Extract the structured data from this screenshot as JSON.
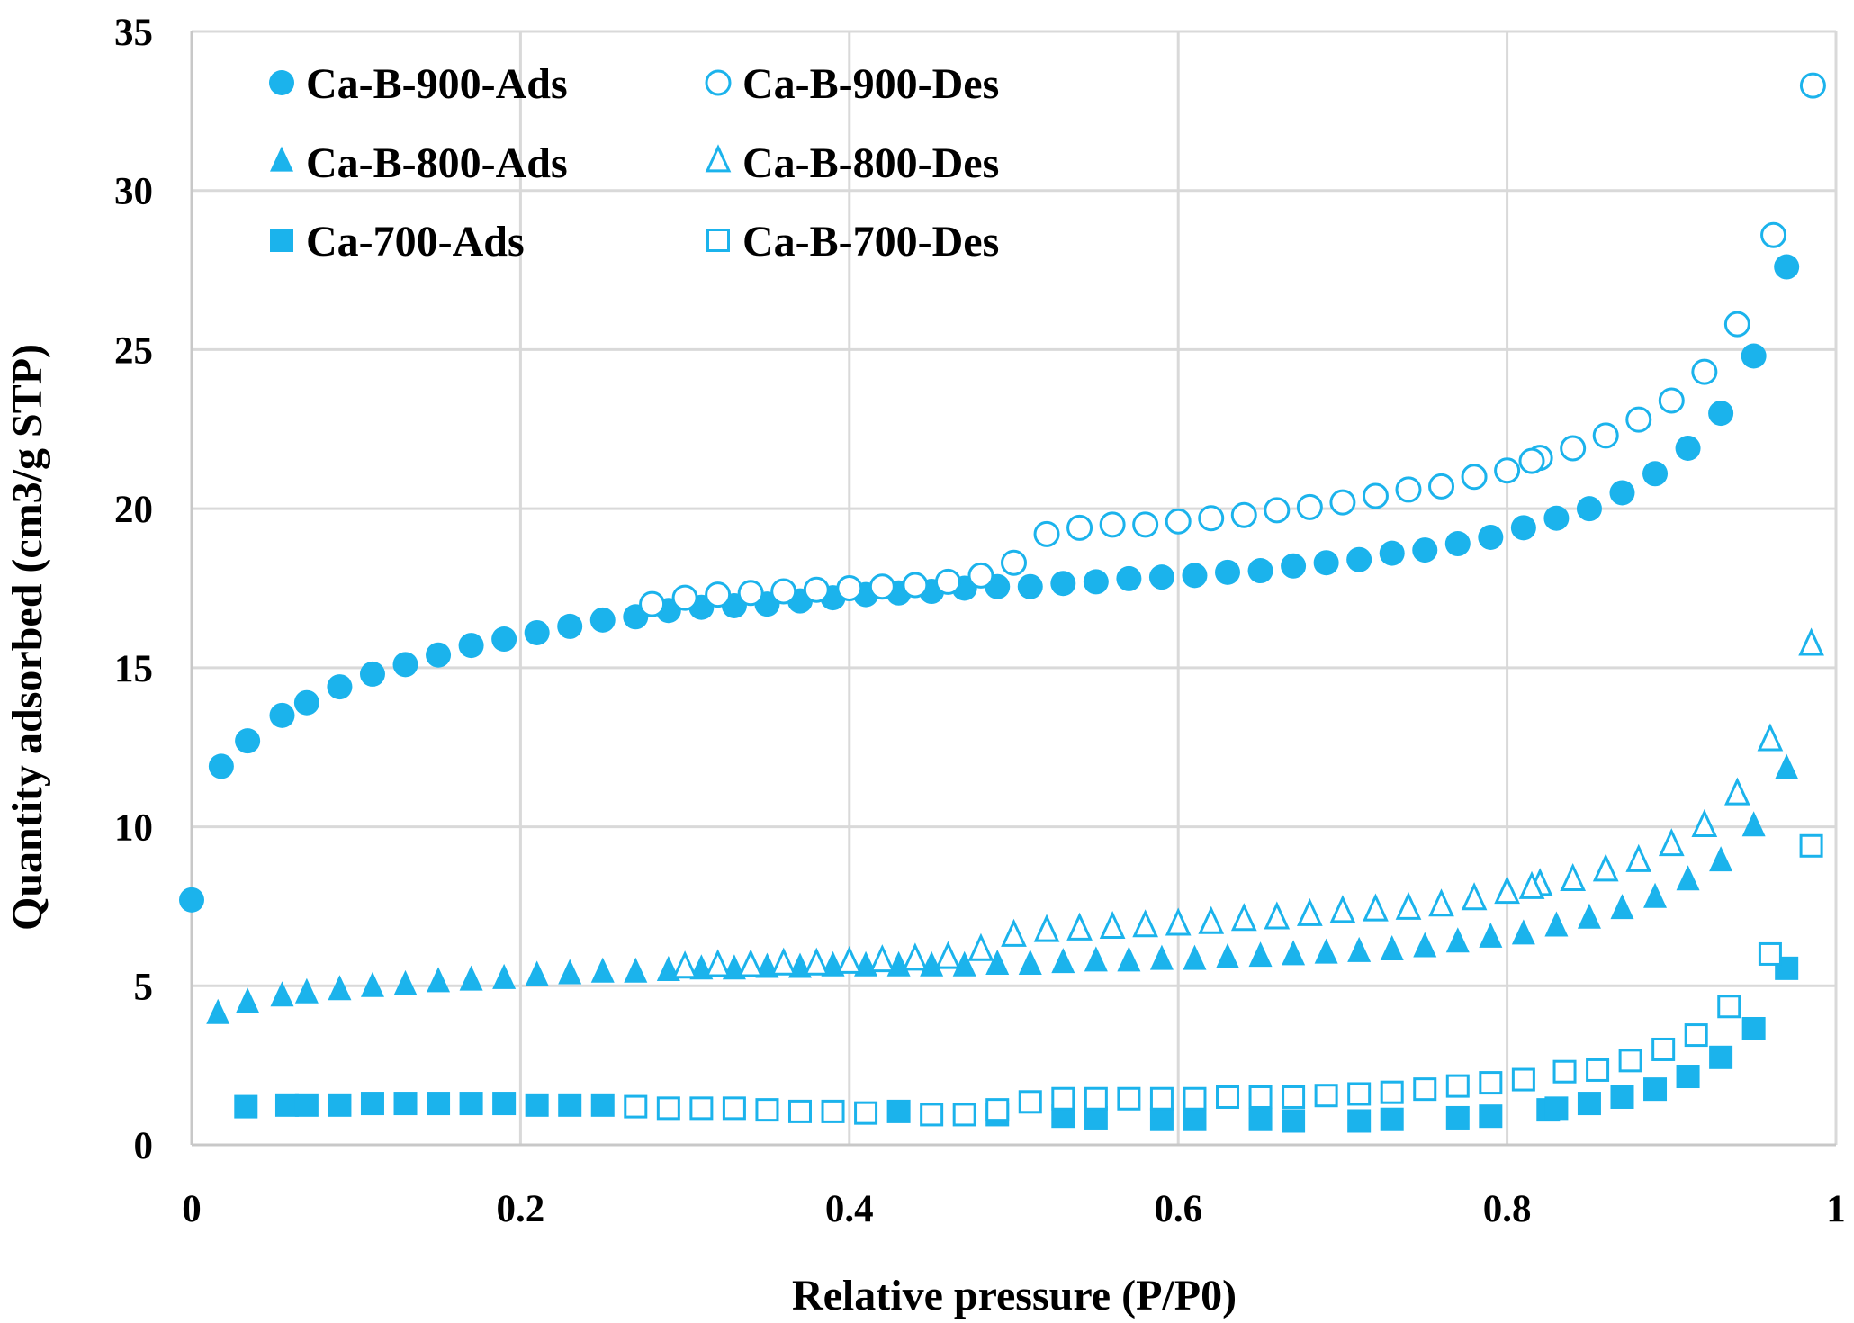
{
  "chart_data": {
    "type": "scatter",
    "title": "",
    "xlabel": "Relative pressure (P/P0)",
    "ylabel": "Quantity adsorbed (cm3/g STP)",
    "xlim": [
      0,
      1
    ],
    "ylim": [
      0,
      35
    ],
    "xticks": [
      0,
      0.2,
      0.4,
      0.6,
      0.8,
      1
    ],
    "xtick_labels": [
      "0",
      "0.2",
      "0.4",
      "0.6",
      "0.8",
      "1"
    ],
    "yticks": [
      0,
      5,
      10,
      15,
      20,
      25,
      30,
      35
    ],
    "ytick_labels": [
      "0",
      "5",
      "10",
      "15",
      "20",
      "25",
      "30",
      "35"
    ],
    "grid": true,
    "legend_position": "top-left",
    "color": "#1bb3ec",
    "series": [
      {
        "name": "Ca-B-900-Ads",
        "marker": "circle",
        "filled": true,
        "x": [
          0.0,
          0.018,
          0.034,
          0.055,
          0.07,
          0.09,
          0.11,
          0.13,
          0.15,
          0.17,
          0.19,
          0.21,
          0.23,
          0.25,
          0.27,
          0.29,
          0.31,
          0.33,
          0.35,
          0.37,
          0.39,
          0.41,
          0.43,
          0.45,
          0.47,
          0.49,
          0.51,
          0.53,
          0.55,
          0.57,
          0.59,
          0.61,
          0.63,
          0.65,
          0.67,
          0.69,
          0.71,
          0.73,
          0.75,
          0.77,
          0.79,
          0.81,
          0.83,
          0.85,
          0.87,
          0.89,
          0.91,
          0.93,
          0.95,
          0.97
        ],
        "y": [
          7.7,
          11.9,
          12.7,
          13.5,
          13.9,
          14.4,
          14.8,
          15.1,
          15.4,
          15.7,
          15.9,
          16.1,
          16.3,
          16.5,
          16.6,
          16.8,
          16.9,
          16.95,
          17.0,
          17.1,
          17.2,
          17.3,
          17.35,
          17.4,
          17.5,
          17.55,
          17.55,
          17.65,
          17.7,
          17.8,
          17.85,
          17.9,
          18.0,
          18.05,
          18.2,
          18.3,
          18.4,
          18.6,
          18.7,
          18.9,
          19.1,
          19.4,
          19.7,
          20.0,
          20.5,
          21.1,
          21.9,
          23.0,
          24.8,
          27.6
        ]
      },
      {
        "name": "Ca-B-900-Des",
        "marker": "circle",
        "filled": false,
        "x": [
          0.986,
          0.962,
          0.94,
          0.92,
          0.9,
          0.88,
          0.86,
          0.84,
          0.82,
          0.815,
          0.8,
          0.78,
          0.76,
          0.74,
          0.72,
          0.7,
          0.68,
          0.66,
          0.64,
          0.62,
          0.6,
          0.58,
          0.56,
          0.54,
          0.52,
          0.5,
          0.48,
          0.46,
          0.44,
          0.42,
          0.4,
          0.38,
          0.36,
          0.34,
          0.32,
          0.3,
          0.28
        ],
        "y": [
          33.3,
          28.6,
          25.8,
          24.3,
          23.4,
          22.8,
          22.3,
          21.9,
          21.6,
          21.5,
          21.2,
          21.0,
          20.7,
          20.6,
          20.4,
          20.2,
          20.05,
          19.95,
          19.8,
          19.7,
          19.6,
          19.5,
          19.5,
          19.4,
          19.2,
          18.3,
          17.9,
          17.7,
          17.6,
          17.55,
          17.5,
          17.45,
          17.4,
          17.35,
          17.3,
          17.2,
          17.0
        ]
      },
      {
        "name": "Ca-B-800-Ads",
        "marker": "triangle",
        "filled": true,
        "x": [
          0.016,
          0.034,
          0.055,
          0.07,
          0.09,
          0.11,
          0.13,
          0.15,
          0.17,
          0.19,
          0.21,
          0.23,
          0.25,
          0.27,
          0.29,
          0.31,
          0.33,
          0.35,
          0.37,
          0.39,
          0.41,
          0.43,
          0.45,
          0.47,
          0.49,
          0.51,
          0.53,
          0.55,
          0.57,
          0.59,
          0.61,
          0.63,
          0.65,
          0.67,
          0.69,
          0.71,
          0.73,
          0.75,
          0.77,
          0.79,
          0.81,
          0.83,
          0.85,
          0.87,
          0.89,
          0.91,
          0.93,
          0.95,
          0.97
        ],
        "y": [
          4.1,
          4.45,
          4.65,
          4.75,
          4.85,
          4.95,
          5.0,
          5.1,
          5.15,
          5.2,
          5.3,
          5.35,
          5.4,
          5.4,
          5.45,
          5.5,
          5.5,
          5.55,
          5.55,
          5.6,
          5.6,
          5.6,
          5.6,
          5.6,
          5.65,
          5.65,
          5.7,
          5.75,
          5.75,
          5.8,
          5.8,
          5.85,
          5.9,
          5.95,
          6.0,
          6.05,
          6.1,
          6.2,
          6.35,
          6.5,
          6.6,
          6.85,
          7.1,
          7.4,
          7.75,
          8.3,
          8.9,
          10.0,
          11.8
        ]
      },
      {
        "name": "Ca-B-800-Des",
        "marker": "triangle",
        "filled": false,
        "x": [
          0.985,
          0.96,
          0.94,
          0.92,
          0.9,
          0.88,
          0.86,
          0.84,
          0.82,
          0.815,
          0.8,
          0.78,
          0.76,
          0.74,
          0.72,
          0.7,
          0.68,
          0.66,
          0.64,
          0.62,
          0.6,
          0.58,
          0.56,
          0.54,
          0.52,
          0.5,
          0.48,
          0.46,
          0.44,
          0.42,
          0.4,
          0.38,
          0.36,
          0.34,
          0.32,
          0.3
        ],
        "y": [
          15.7,
          12.7,
          11.0,
          10.0,
          9.4,
          8.9,
          8.6,
          8.3,
          8.15,
          8.05,
          7.9,
          7.7,
          7.5,
          7.4,
          7.35,
          7.3,
          7.2,
          7.1,
          7.05,
          6.95,
          6.9,
          6.85,
          6.8,
          6.75,
          6.7,
          6.55,
          6.1,
          5.85,
          5.8,
          5.75,
          5.7,
          5.65,
          5.65,
          5.6,
          5.6,
          5.55
        ]
      },
      {
        "name": "Ca-700-Ads",
        "marker": "square",
        "filled": true,
        "x": [
          0.033,
          0.058,
          0.07,
          0.09,
          0.11,
          0.13,
          0.15,
          0.17,
          0.19,
          0.21,
          0.23,
          0.25,
          0.43,
          0.49,
          0.53,
          0.55,
          0.59,
          0.61,
          0.65,
          0.67,
          0.71,
          0.73,
          0.77,
          0.79,
          0.825,
          0.83,
          0.85,
          0.87,
          0.89,
          0.91,
          0.93,
          0.95,
          0.97
        ],
        "y": [
          1.2,
          1.25,
          1.25,
          1.25,
          1.3,
          1.3,
          1.3,
          1.3,
          1.3,
          1.25,
          1.25,
          1.25,
          1.05,
          0.95,
          0.9,
          0.85,
          0.8,
          0.8,
          0.8,
          0.75,
          0.75,
          0.8,
          0.85,
          0.9,
          1.1,
          1.15,
          1.3,
          1.5,
          1.75,
          2.15,
          2.75,
          3.65,
          5.55
        ]
      },
      {
        "name": "Ca-B-700-Des",
        "marker": "square",
        "filled": false,
        "x": [
          0.985,
          0.96,
          0.935,
          0.915,
          0.895,
          0.875,
          0.855,
          0.835,
          0.81,
          0.79,
          0.77,
          0.75,
          0.73,
          0.71,
          0.69,
          0.67,
          0.65,
          0.63,
          0.61,
          0.59,
          0.57,
          0.55,
          0.53,
          0.51,
          0.49,
          0.47,
          0.45,
          0.41,
          0.39,
          0.37,
          0.35,
          0.33,
          0.31,
          0.29,
          0.27
        ],
        "y": [
          9.4,
          6.0,
          4.35,
          3.45,
          3.0,
          2.65,
          2.35,
          2.3,
          2.05,
          1.95,
          1.85,
          1.75,
          1.65,
          1.6,
          1.55,
          1.5,
          1.5,
          1.5,
          1.45,
          1.45,
          1.45,
          1.45,
          1.45,
          1.35,
          1.1,
          0.95,
          0.95,
          1.0,
          1.05,
          1.05,
          1.1,
          1.15,
          1.15,
          1.15,
          1.2
        ]
      }
    ]
  }
}
